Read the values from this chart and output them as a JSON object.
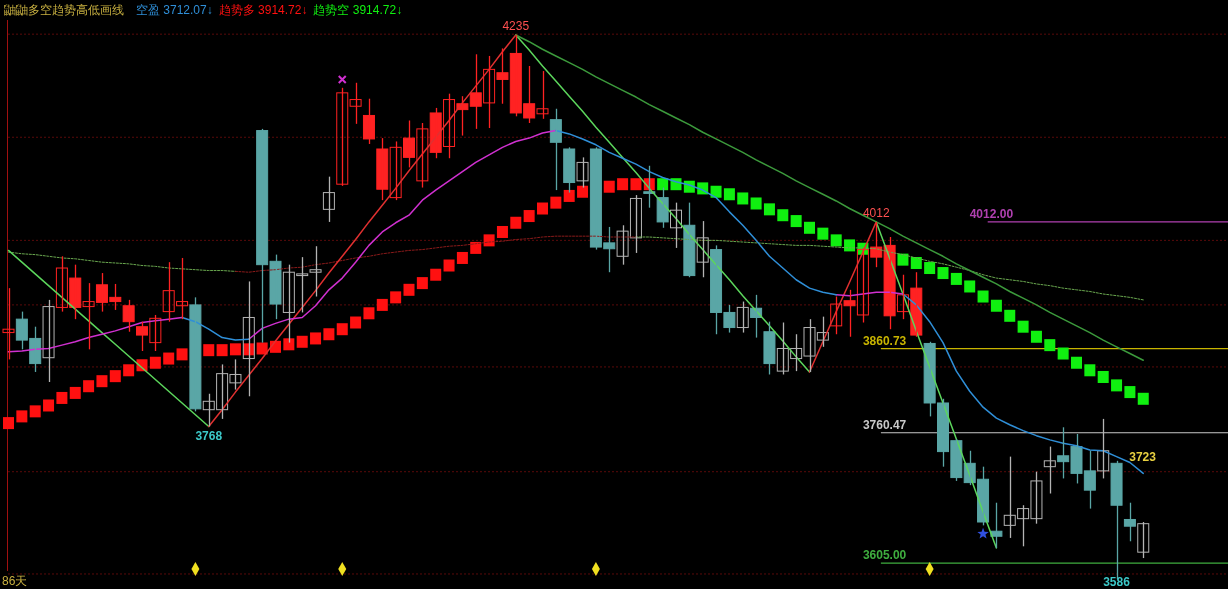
{
  "chart_data": {
    "type": "candlestick",
    "title": "鼬鼬多空趋势高低画线",
    "legend": "top left",
    "grid": "y",
    "yticks": [
      {
        "value": 4236,
        "label": null
      },
      {
        "value": 4113,
        "label": null
      },
      {
        "value": 3990,
        "label": null
      },
      {
        "value": 3913,
        "label": null
      },
      {
        "value": 3839,
        "label": null
      },
      {
        "value": 3714,
        "label": null
      },
      {
        "value": 3592,
        "label": null
      }
    ],
    "categories": [
      null,
      null,
      null,
      null,
      null,
      null,
      null,
      null,
      null,
      null,
      null,
      null,
      null,
      null,
      null,
      null,
      null,
      null,
      null,
      null,
      null,
      null,
      null,
      null,
      null,
      null,
      null,
      null,
      null,
      null,
      null,
      null,
      null,
      null,
      null,
      null,
      null,
      null,
      null,
      null,
      null,
      null,
      null,
      null,
      null,
      null,
      null,
      null,
      null,
      null,
      null,
      null,
      null,
      null,
      null,
      null,
      null,
      null,
      null,
      null,
      null,
      null,
      null,
      null,
      null,
      null,
      null,
      null,
      null,
      null,
      null,
      null,
      null,
      null,
      null,
      null,
      null,
      null,
      null,
      null,
      null,
      null,
      null,
      null,
      null,
      null
    ],
    "ohlc": [
      [
        3880,
        3933,
        3848,
        3884
      ],
      [
        3896,
        3905,
        3860,
        3871
      ],
      [
        3873,
        3887,
        3833,
        3843
      ],
      [
        3850,
        3919,
        3821,
        3911
      ],
      [
        3910,
        3971,
        3905,
        3957
      ],
      [
        3945,
        3961,
        3896,
        3910
      ],
      [
        3911,
        3939,
        3860,
        3917
      ],
      [
        3937,
        3951,
        3905,
        3916
      ],
      [
        3922,
        3938,
        3907,
        3917
      ],
      [
        3912,
        3919,
        3881,
        3893
      ],
      [
        3887,
        3893,
        3858,
        3877
      ],
      [
        3868,
        3901,
        3858,
        3897
      ],
      [
        3905,
        3964,
        3893,
        3930
      ],
      [
        3912,
        3969,
        3896,
        3917
      ],
      [
        3913,
        3922,
        3786,
        3789
      ],
      [
        3788,
        3807,
        3768,
        3798
      ],
      [
        3788,
        3842,
        3777,
        3831
      ],
      [
        3820,
        3848,
        3812,
        3830
      ],
      [
        3849,
        3941,
        3804,
        3898
      ],
      [
        4121,
        4123,
        3868,
        3961
      ],
      [
        3965,
        3973,
        3896,
        3914
      ],
      [
        3904,
        3961,
        3868,
        3952
      ],
      [
        3948,
        3970,
        3904,
        3950
      ],
      [
        3952,
        3983,
        3923,
        3955
      ],
      [
        4027,
        4066,
        4012,
        4047
      ],
      [
        4057,
        4172,
        4055,
        4166
      ],
      [
        4150,
        4178,
        4129,
        4158
      ],
      [
        4139,
        4159,
        4105,
        4111
      ],
      [
        4099,
        4112,
        4038,
        4051
      ],
      [
        4041,
        4108,
        4038,
        4101
      ],
      [
        4112,
        4133,
        4077,
        4089
      ],
      [
        4061,
        4130,
        4053,
        4123
      ],
      [
        4142,
        4148,
        4088,
        4095
      ],
      [
        4102,
        4165,
        4088,
        4158
      ],
      [
        4153,
        4162,
        4115,
        4146
      ],
      [
        4166,
        4212,
        4123,
        4150
      ],
      [
        4154,
        4210,
        4124,
        4194
      ],
      [
        4190,
        4219,
        4153,
        4182
      ],
      [
        4213,
        4235,
        4138,
        4142
      ],
      [
        4153,
        4198,
        4130,
        4136
      ],
      [
        4141,
        4192,
        4135,
        4147
      ],
      [
        4134,
        4147,
        4050,
        4107
      ],
      [
        4099,
        4101,
        4047,
        4059
      ],
      [
        4061,
        4089,
        4053,
        4083
      ],
      [
        4099,
        4101,
        3979,
        3982
      ],
      [
        3987,
        4006,
        3952,
        3980
      ],
      [
        3971,
        4008,
        3961,
        4001
      ],
      [
        3993,
        4044,
        3975,
        4040
      ],
      [
        4048,
        4079,
        4029,
        4046
      ],
      [
        4041,
        4053,
        4005,
        4012
      ],
      [
        4005,
        4035,
        3981,
        4026
      ],
      [
        4008,
        4035,
        3946,
        3948
      ],
      [
        3964,
        4013,
        3946,
        3993
      ],
      [
        3979,
        3984,
        3878,
        3904
      ],
      [
        3904,
        3913,
        3880,
        3886
      ],
      [
        3886,
        3917,
        3880,
        3910
      ],
      [
        3909,
        3925,
        3874,
        3898
      ],
      [
        3881,
        3893,
        3830,
        3843
      ],
      [
        3834,
        3892,
        3830,
        3861
      ],
      [
        3849,
        3878,
        3834,
        3861
      ],
      [
        3852,
        3896,
        3833,
        3886
      ],
      [
        3871,
        3899,
        3863,
        3880
      ],
      [
        3888,
        3923,
        3878,
        3914
      ],
      [
        3918,
        3931,
        3875,
        3912
      ],
      [
        3901,
        3981,
        3892,
        3979
      ],
      [
        3982,
        4012,
        3958,
        3970
      ],
      [
        3984,
        3994,
        3884,
        3900
      ],
      [
        3905,
        3949,
        3896,
        3925
      ],
      [
        3933,
        3952,
        3875,
        3877
      ],
      [
        3867,
        3869,
        3780,
        3796
      ],
      [
        3796,
        3801,
        3720,
        3738
      ],
      [
        3751,
        3753,
        3703,
        3707
      ],
      [
        3724,
        3739,
        3698,
        3701
      ],
      [
        3705,
        3720,
        3650,
        3654
      ],
      [
        3643,
        3677,
        3623,
        3637
      ],
      [
        3650,
        3732,
        3635,
        3662
      ],
      [
        3658,
        3674,
        3625,
        3670
      ],
      [
        3658,
        3714,
        3652,
        3703
      ],
      [
        3720,
        3744,
        3688,
        3727
      ],
      [
        3733,
        3767,
        3706,
        3726
      ],
      [
        3744,
        3759,
        3700,
        3712
      ],
      [
        3715,
        3739,
        3670,
        3692
      ],
      [
        3715,
        3777,
        3706,
        3739
      ],
      [
        3724,
        3727,
        3586,
        3674
      ],
      [
        3657,
        3677,
        3631,
        3649
      ],
      [
        3618,
        3654,
        3611,
        3652
      ]
    ],
    "colors": [
      "#ff2222",
      "#5aa6a6",
      "#5aa6a6",
      "#b4b4b4",
      "#ff2222",
      "#ff2222",
      "#ff2222",
      "#ff2222",
      "#ff2222",
      "#ff2222",
      "#ff2222",
      "#ff2222",
      "#ff2222",
      "#ff2222",
      "#5aa6a6",
      "#b4b4b4",
      "#b4b4b4",
      "#b4b4b4",
      "#b4b4b4",
      "#5aa6a6",
      "#5aa6a6",
      "#b4b4b4",
      "#b4b4b4",
      "#b4b4b4",
      "#b4b4b4",
      "#ff2222",
      "#ff2222",
      "#ff2222",
      "#ff2222",
      "#ff2222",
      "#ff2222",
      "#ff2222",
      "#ff2222",
      "#ff2222",
      "#ff2222",
      "#ff2222",
      "#ff2222",
      "#ff2222",
      "#ff2222",
      "#ff2222",
      "#ff2222",
      "#5aa6a6",
      "#5aa6a6",
      "#b4b4b4",
      "#5aa6a6",
      "#5aa6a6",
      "#b4b4b4",
      "#b4b4b4",
      "#5aa6a6",
      "#5aa6a6",
      "#b4b4b4",
      "#5aa6a6",
      "#b4b4b4",
      "#5aa6a6",
      "#5aa6a6",
      "#b4b4b4",
      "#5aa6a6",
      "#5aa6a6",
      "#b4b4b4",
      "#b4b4b4",
      "#b4b4b4",
      "#b4b4b4",
      "#ff2222",
      "#ff2222",
      "#ff2222",
      "#ff2222",
      "#ff2222",
      "#ff2222",
      "#ff2222",
      "#5aa6a6",
      "#5aa6a6",
      "#5aa6a6",
      "#5aa6a6",
      "#5aa6a6",
      "#5aa6a6",
      "#b4b4b4",
      "#b4b4b4",
      "#b4b4b4",
      "#b4b4b4",
      "#5aa6a6",
      "#5aa6a6",
      "#5aa6a6",
      "#b4b4b4",
      "#5aa6a6",
      "#5aa6a6",
      "#b4b4b4"
    ],
    "series": [
      {
        "type": "line",
        "line_style": "dotted",
        "color": "#6aa84f",
        "values": [
          3976,
          3974,
          3973,
          3971,
          3969,
          3968,
          3966,
          3964,
          3963,
          3962,
          3960,
          3959,
          3957,
          3956,
          3955,
          3954,
          3954,
          3953,
          null,
          null,
          null,
          null,
          null,
          null,
          null,
          null,
          null,
          null,
          null,
          null,
          null,
          null,
          null,
          null,
          null,
          null,
          null,
          null,
          null,
          null,
          null,
          null,
          null,
          null,
          null,
          null,
          null,
          3994,
          3994,
          3993,
          3992,
          3991,
          3990,
          3990,
          3989,
          3988,
          3987,
          3986,
          3985,
          3984,
          3984,
          3983,
          3982,
          3981,
          3981,
          3980,
          3976,
          3973,
          3969,
          3965,
          3962,
          3958,
          3954,
          3949,
          3945,
          3943,
          3941,
          3938,
          3936,
          3933,
          3931,
          3929,
          3926,
          3924,
          3922,
          3919
        ]
      },
      {
        "type": "line",
        "line_style": "dotted",
        "color": "#8b1a1a",
        "values": [
          null,
          null,
          null,
          null,
          null,
          null,
          null,
          null,
          null,
          null,
          null,
          null,
          null,
          null,
          null,
          null,
          null,
          3953,
          3952,
          3954,
          3955,
          3957,
          3958,
          3961,
          3963,
          3966,
          3969,
          3971,
          3974,
          3976,
          3978,
          3979,
          3981,
          3983,
          3984,
          3986,
          3988,
          3989,
          3991,
          3992,
          3994,
          3995,
          3995,
          3995,
          3995,
          3994,
          3994,
          3994,
          null,
          null,
          null,
          null,
          null,
          null,
          null,
          null,
          null,
          null,
          null,
          null,
          null,
          null,
          null,
          null,
          null,
          null,
          null,
          null,
          null,
          null,
          null,
          null,
          null,
          null,
          null,
          null,
          null,
          null,
          null,
          null,
          null,
          null,
          null,
          null,
          null,
          null
        ]
      },
      {
        "type": "line",
        "color": "#5cd65c",
        "values": [
          3978,
          3964,
          3950,
          3936,
          3922,
          3908,
          3894,
          3880,
          3866,
          3852,
          3838,
          3824,
          3810,
          3796,
          3782,
          3768,
          null,
          null,
          null,
          null,
          null,
          null,
          null,
          null,
          null,
          null,
          null,
          null,
          null,
          null,
          null,
          null,
          null,
          null,
          null,
          null,
          null,
          null,
          4235,
          4217,
          4198,
          4180,
          4162,
          4144,
          4125,
          4107,
          4089,
          4071,
          4052,
          4034,
          4016,
          3997,
          3979,
          3961,
          3943,
          3924,
          3906,
          3888,
          3870,
          3851,
          3833,
          null,
          null,
          null,
          null,
          4012,
          3969,
          3926,
          3882,
          3839,
          3796,
          3753,
          3710,
          3666,
          3623,
          null,
          null,
          null,
          null,
          null,
          null,
          null,
          null,
          null,
          null,
          null
        ]
      },
      {
        "type": "line",
        "color": "#e03030",
        "values": [
          null,
          null,
          null,
          null,
          null,
          null,
          null,
          null,
          null,
          null,
          null,
          null,
          null,
          null,
          null,
          3768,
          3788,
          3809,
          3829,
          3849,
          3870,
          3890,
          3910,
          3930,
          3951,
          3971,
          3991,
          4012,
          4032,
          4052,
          4073,
          4093,
          4113,
          4133,
          4154,
          4174,
          4194,
          4215,
          4235,
          null,
          null,
          null,
          null,
          null,
          null,
          null,
          null,
          null,
          null,
          null,
          null,
          null,
          null,
          null,
          null,
          null,
          null,
          null,
          null,
          null,
          3833,
          3869,
          3905,
          3940,
          3976,
          4012,
          null,
          null,
          null,
          null,
          null,
          null,
          null,
          null,
          null,
          null,
          null,
          null,
          null,
          null,
          null,
          null,
          null,
          null,
          null,
          null
        ]
      },
      {
        "type": "line",
        "color": "#3c9a3c",
        "values": [
          null,
          null,
          null,
          null,
          null,
          null,
          null,
          null,
          null,
          null,
          null,
          null,
          null,
          null,
          null,
          null,
          null,
          null,
          null,
          null,
          null,
          null,
          null,
          null,
          null,
          null,
          null,
          null,
          null,
          null,
          null,
          null,
          null,
          null,
          null,
          null,
          null,
          null,
          4235,
          4227,
          4218,
          4210,
          4202,
          4194,
          4185,
          4177,
          4169,
          4161,
          4152,
          4144,
          4136,
          4128,
          4119,
          4111,
          4103,
          4095,
          4086,
          4078,
          4070,
          4061,
          4053,
          4045,
          4037,
          4028,
          4020,
          4012,
          4004,
          3995,
          3987,
          3979,
          3971,
          3962,
          3954,
          3946,
          3938,
          3929,
          3921,
          3913,
          3904,
          3896,
          3888,
          3880,
          3871,
          3863,
          3855,
          3847
        ]
      },
      {
        "type": "line",
        "color": "#d030d0",
        "values": [
          3857,
          3858,
          3860,
          3861,
          3865,
          3869,
          3874,
          3878,
          3882,
          3887,
          3892,
          3894,
          3896,
          3898,
          null,
          null,
          null,
          null,
          3872,
          3885,
          3891,
          3896,
          3898,
          3912,
          3931,
          3945,
          3964,
          3984,
          4000,
          4011,
          4020,
          4038,
          4050,
          4061,
          4072,
          4083,
          4092,
          4101,
          4108,
          4112,
          4118,
          4121,
          null,
          null,
          null,
          null,
          null,
          null,
          null,
          null,
          null,
          null,
          null,
          null,
          null,
          null,
          null,
          null,
          null,
          null,
          null,
          null,
          3925,
          3924,
          3926,
          3928,
          3928,
          3926,
          null,
          null,
          null,
          null,
          null,
          null,
          null,
          null,
          null,
          null,
          null,
          null,
          null,
          null,
          null,
          null,
          null,
          null
        ]
      },
      {
        "type": "line",
        "name": "空盈 3712.07↓",
        "color": "#2f8fd8",
        "values": [
          null,
          null,
          null,
          null,
          null,
          null,
          null,
          null,
          null,
          null,
          null,
          null,
          null,
          3898,
          3893,
          3884,
          3874,
          3871,
          3872,
          null,
          null,
          null,
          null,
          null,
          null,
          null,
          null,
          null,
          null,
          null,
          null,
          null,
          null,
          null,
          null,
          null,
          null,
          null,
          null,
          null,
          null,
          4121,
          4117,
          4111,
          4104,
          4095,
          4088,
          4081,
          4072,
          4065,
          4060,
          4056,
          4050,
          4041,
          4024,
          4008,
          3990,
          3971,
          3957,
          3943,
          3933,
          3928,
          3925,
          null,
          null,
          null,
          null,
          3926,
          3913,
          3893,
          3868,
          3834,
          3810,
          3791,
          3778,
          3770,
          3763,
          3757,
          3752,
          3748,
          3745,
          3740,
          3739,
          3732,
          3725,
          3712
        ]
      },
      {
        "type": "scatter",
        "marker": "square",
        "name": "趋势多 3914.72↓",
        "color": "#ff1010",
        "values": [
          3772,
          3780,
          3786,
          3793,
          3802,
          3808,
          3816,
          3822,
          3828,
          3835,
          3841,
          3844,
          3849,
          3854,
          null,
          3859,
          3859,
          3860,
          3860,
          3861,
          3863,
          3866,
          3869,
          3873,
          3878,
          3884,
          3892,
          3903,
          3913,
          3922,
          3931,
          3939,
          3949,
          3960,
          3969,
          3981,
          3990,
          4000,
          4011,
          4019,
          4028,
          4035,
          4043,
          4048,
          null,
          4054,
          4057,
          4057,
          4057,
          null,
          null,
          null,
          null,
          null,
          null,
          null,
          null,
          null,
          null,
          null,
          null,
          null,
          null,
          null,
          null,
          null,
          null,
          null,
          null,
          null,
          null,
          null,
          null,
          null,
          null,
          null,
          null,
          null,
          null,
          null,
          null,
          null,
          null,
          null,
          null,
          null
        ]
      },
      {
        "type": "scatter",
        "marker": "square",
        "name": "趋势空 3914.72↓",
        "color": "#10f010",
        "values": [
          null,
          null,
          null,
          null,
          null,
          null,
          null,
          null,
          null,
          null,
          null,
          null,
          null,
          null,
          null,
          null,
          null,
          null,
          null,
          null,
          null,
          null,
          null,
          null,
          null,
          null,
          null,
          null,
          null,
          null,
          null,
          null,
          null,
          null,
          null,
          null,
          null,
          null,
          null,
          null,
          null,
          null,
          null,
          null,
          null,
          null,
          null,
          null,
          null,
          4057,
          4057,
          4054,
          4052,
          4048,
          4045,
          4040,
          4034,
          4027,
          4020,
          4013,
          4005,
          3998,
          3990,
          3984,
          3980,
          null,
          null,
          3967,
          3963,
          3957,
          3951,
          3944,
          3935,
          3923,
          3912,
          3900,
          3887,
          3875,
          3865,
          3855,
          3844,
          3835,
          3827,
          3817,
          3809,
          3801
        ]
      },
      {
        "type": "scatter",
        "marker": "diamond",
        "color": "#f0e020",
        "values": [
          null,
          null,
          null,
          null,
          null,
          null,
          null,
          null,
          null,
          null,
          null,
          null,
          null,
          null,
          3598,
          null,
          null,
          null,
          null,
          null,
          null,
          null,
          null,
          null,
          null,
          3598,
          null,
          null,
          null,
          null,
          null,
          null,
          null,
          null,
          null,
          null,
          null,
          null,
          null,
          null,
          null,
          null,
          null,
          null,
          3598,
          null,
          null,
          null,
          null,
          null,
          null,
          null,
          null,
          null,
          null,
          null,
          null,
          null,
          null,
          null,
          null,
          null,
          null,
          null,
          null,
          null,
          null,
          null,
          null,
          3598,
          null,
          null,
          null,
          null,
          null,
          null,
          null,
          null,
          null,
          null,
          null,
          null,
          null,
          null,
          null,
          null
        ]
      },
      {
        "type": "scatter",
        "marker": "cross",
        "color": "#d030d0",
        "values": [
          null,
          null,
          null,
          null,
          null,
          null,
          null,
          null,
          null,
          null,
          null,
          null,
          null,
          null,
          null,
          null,
          null,
          null,
          null,
          null,
          null,
          null,
          null,
          null,
          null,
          4182,
          null,
          null,
          null,
          null,
          null,
          null,
          null,
          null,
          null,
          null,
          null,
          null,
          null,
          null,
          null,
          null,
          null,
          null,
          null,
          null,
          null,
          null,
          null,
          null,
          null,
          null,
          null,
          null,
          null,
          null,
          null,
          null,
          null,
          null,
          null,
          null,
          null,
          null,
          null,
          null,
          null,
          null,
          null,
          null,
          null,
          null,
          null,
          null,
          null,
          null,
          null,
          null,
          null,
          null,
          null,
          null,
          null,
          null,
          null,
          null
        ]
      },
      {
        "type": "scatter",
        "marker": "star",
        "color": "#3050e0",
        "values": [
          null,
          null,
          null,
          null,
          null,
          null,
          null,
          null,
          null,
          null,
          null,
          null,
          null,
          null,
          null,
          null,
          null,
          null,
          null,
          null,
          null,
          null,
          null,
          null,
          null,
          null,
          null,
          null,
          null,
          null,
          null,
          null,
          null,
          null,
          null,
          null,
          null,
          null,
          null,
          null,
          null,
          null,
          null,
          null,
          null,
          null,
          null,
          null,
          null,
          null,
          null,
          null,
          null,
          null,
          null,
          null,
          null,
          null,
          null,
          null,
          null,
          null,
          null,
          null,
          null,
          null,
          null,
          null,
          null,
          null,
          null,
          null,
          null,
          3640,
          null,
          null,
          null,
          null,
          null,
          null,
          null,
          null,
          null,
          null,
          null,
          null
        ]
      }
    ],
    "ref_lines": [
      {
        "axis": "y",
        "value": 4012.0,
        "label": "4012.00",
        "color": "#b040b0"
      },
      {
        "axis": "y",
        "value": 3860.73,
        "label": "3860.73",
        "color": "#c8b400"
      },
      {
        "axis": "y",
        "value": 3760.47,
        "label": "3760.47",
        "color": "#c8c8c8"
      },
      {
        "axis": "y",
        "value": 3605.0,
        "label": "3605.00",
        "color": "#3fae3f"
      }
    ],
    "annotations": [
      "86天",
      {
        "text": "4235",
        "y": 4235
      },
      {
        "text": "3768",
        "y": 3768
      },
      {
        "text": "4012",
        "y": 4012
      },
      {
        "text": "3586",
        "y": 3586
      },
      "3723"
    ]
  }
}
